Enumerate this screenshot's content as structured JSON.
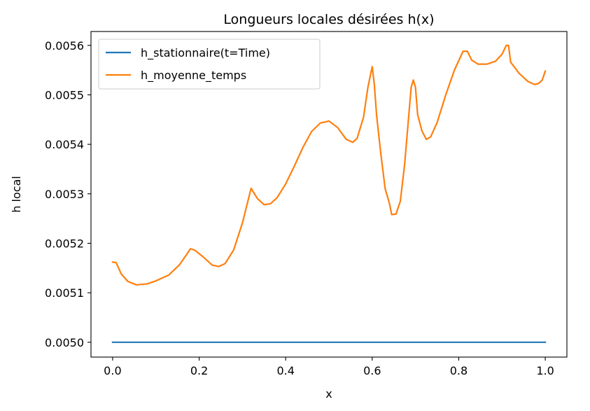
{
  "chart_data": {
    "type": "line",
    "title": "Longueurs locales désirées h(x)",
    "xlabel": "x",
    "ylabel": "h local",
    "xlim": [
      -0.05,
      1.05
    ],
    "ylim": [
      0.00497,
      0.005628
    ],
    "xticks": [
      0.0,
      0.2,
      0.4,
      0.6,
      0.8,
      1.0
    ],
    "xtick_labels": [
      "0.0",
      "0.2",
      "0.4",
      "0.6",
      "0.8",
      "1.0"
    ],
    "yticks": [
      0.005,
      0.0051,
      0.0052,
      0.0053,
      0.0054,
      0.0055,
      0.0056
    ],
    "ytick_labels": [
      "0.0050",
      "0.0051",
      "0.0052",
      "0.0053",
      "0.0054",
      "0.0055",
      "0.0056"
    ],
    "grid": false,
    "legend_position": "top-left",
    "series": [
      {
        "name": "h_stationnaire(t=Time)",
        "color": "#1f77b4",
        "x": [
          0.0,
          1.0
        ],
        "y": [
          0.005,
          0.005
        ]
      },
      {
        "name": "h_moyenne_temps",
        "color": "#ff7f0e",
        "x": [
          0.0,
          0.008,
          0.02,
          0.035,
          0.055,
          0.08,
          0.1,
          0.13,
          0.155,
          0.17,
          0.18,
          0.19,
          0.21,
          0.23,
          0.245,
          0.26,
          0.28,
          0.3,
          0.32,
          0.335,
          0.35,
          0.365,
          0.38,
          0.4,
          0.42,
          0.44,
          0.46,
          0.48,
          0.5,
          0.52,
          0.54,
          0.555,
          0.565,
          0.58,
          0.59,
          0.6,
          0.605,
          0.61,
          0.62,
          0.63,
          0.64,
          0.645,
          0.655,
          0.665,
          0.675,
          0.69,
          0.695,
          0.7,
          0.705,
          0.715,
          0.725,
          0.735,
          0.75,
          0.77,
          0.79,
          0.81,
          0.82,
          0.83,
          0.845,
          0.865,
          0.885,
          0.9,
          0.91,
          0.915,
          0.92,
          0.94,
          0.96,
          0.975,
          0.985,
          0.993,
          1.0
        ],
        "y": [
          0.005162,
          0.005161,
          0.005138,
          0.005123,
          0.005116,
          0.005118,
          0.005124,
          0.005136,
          0.005157,
          0.005176,
          0.005189,
          0.005186,
          0.005172,
          0.005156,
          0.005153,
          0.005159,
          0.005187,
          0.005241,
          0.005311,
          0.00529,
          0.005278,
          0.00528,
          0.005292,
          0.00532,
          0.005356,
          0.005394,
          0.005426,
          0.005443,
          0.005447,
          0.005434,
          0.00541,
          0.005404,
          0.005412,
          0.005455,
          0.005515,
          0.005557,
          0.00552,
          0.00546,
          0.00538,
          0.00531,
          0.00528,
          0.005258,
          0.005259,
          0.005285,
          0.00536,
          0.005515,
          0.00553,
          0.005515,
          0.00546,
          0.005427,
          0.00541,
          0.005415,
          0.005444,
          0.0055,
          0.00555,
          0.005588,
          0.005588,
          0.00557,
          0.005562,
          0.005562,
          0.005568,
          0.005582,
          0.0056,
          0.0056,
          0.005566,
          0.005543,
          0.005527,
          0.005521,
          0.005523,
          0.00553,
          0.005548
        ]
      }
    ]
  }
}
